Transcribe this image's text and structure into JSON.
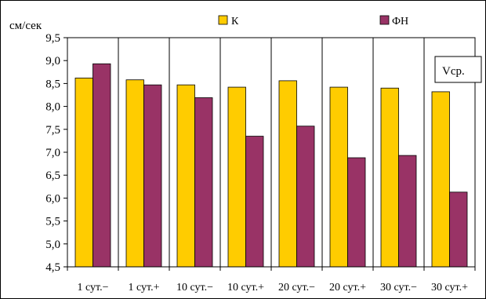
{
  "chart_data": {
    "type": "bar",
    "ylabel": "см/сек",
    "annotation": "Vср.",
    "ylim": [
      4.5,
      9.5
    ],
    "yticks": [
      4.5,
      5.0,
      5.5,
      6.0,
      6.5,
      7.0,
      7.5,
      8.0,
      8.5,
      9.0,
      9.5
    ],
    "ytick_labels": [
      "4,5",
      "5,0",
      "5,5",
      "6,0",
      "6,5",
      "7,0",
      "7,5",
      "8,0",
      "8,5",
      "9,0",
      "9,5"
    ],
    "grid": "vertical separators between categories",
    "legend_position": "top",
    "categories": [
      "1 сут.−",
      "1 сут.+",
      "10 сут.−",
      "10 сут.+",
      "20 сут.−",
      "20 сут.+",
      "30 сут.−",
      "30 сут.+"
    ],
    "series": [
      {
        "name": "К",
        "color": "#FFCC00",
        "values": [
          8.62,
          8.58,
          8.47,
          8.42,
          8.56,
          8.42,
          8.4,
          8.32
        ]
      },
      {
        "name": "ФН",
        "color": "#993366",
        "values": [
          8.93,
          8.47,
          8.19,
          7.35,
          7.57,
          6.88,
          6.93,
          6.13
        ]
      }
    ]
  }
}
